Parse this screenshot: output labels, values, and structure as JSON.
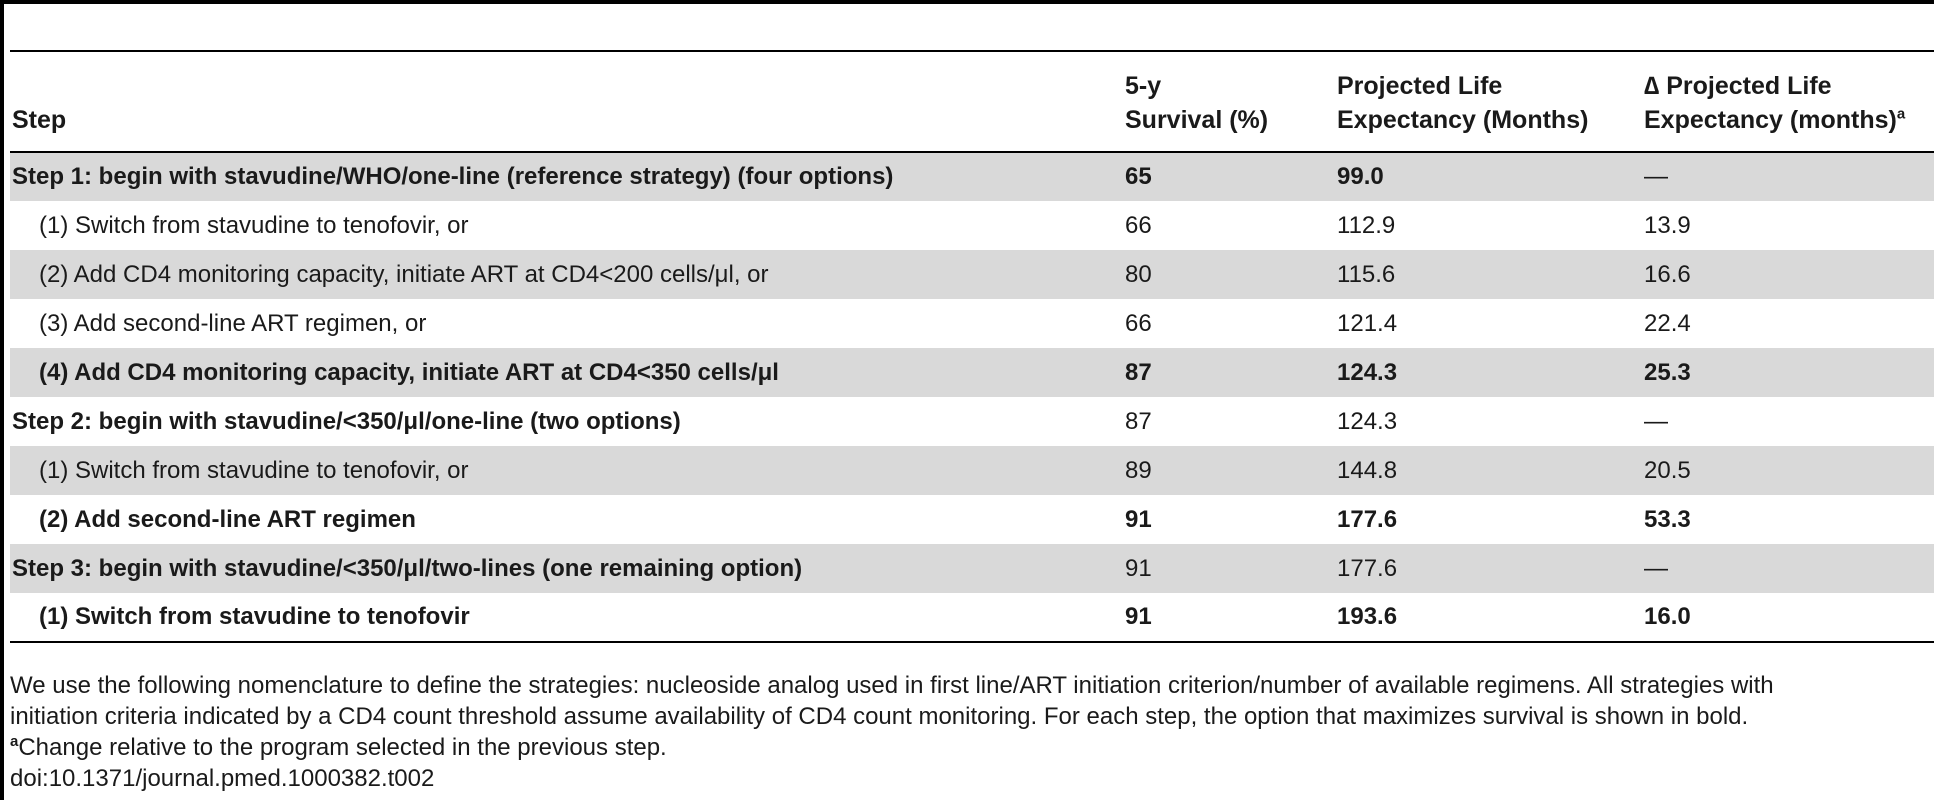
{
  "table": {
    "headers": {
      "step": "Step",
      "survival": [
        "5-y",
        "Survival (%)"
      ],
      "ple": [
        "Projected Life",
        "Expectancy (Months)"
      ],
      "delta": [
        "∆ Projected Life",
        "Expectancy (months)"
      ],
      "delta_sup": "a"
    },
    "rows": [
      {
        "label": "Step 1: begin with stavudine/WHO/one-line (reference strategy) (four options)",
        "survival": "65",
        "ple": "99.0",
        "delta": "—"
      },
      {
        "label": "(1) Switch from stavudine to tenofovir, or",
        "survival": "66",
        "ple": "112.9",
        "delta": "13.9"
      },
      {
        "label": "(2) Add CD4 monitoring capacity, initiate ART at CD4<200 cells/μl, or",
        "survival": "80",
        "ple": "115.6",
        "delta": "16.6"
      },
      {
        "label": "(3) Add second-line ART regimen, or",
        "survival": "66",
        "ple": "121.4",
        "delta": "22.4"
      },
      {
        "label": "(4) Add CD4 monitoring capacity, initiate ART at CD4<350 cells/μl",
        "survival": "87",
        "ple": "124.3",
        "delta": "25.3"
      },
      {
        "label": "Step 2: begin with stavudine/<350/μl/one-line (two options)",
        "survival": "87",
        "ple": "124.3",
        "delta": "—"
      },
      {
        "label": "(1) Switch from stavudine to tenofovir, or",
        "survival": "89",
        "ple": "144.8",
        "delta": "20.5"
      },
      {
        "label": "(2) Add second-line ART regimen",
        "survival": "91",
        "ple": "177.6",
        "delta": "53.3"
      },
      {
        "label": "Step 3: begin with stavudine/<350/μl/two-lines (one remaining option)",
        "survival": "91",
        "ple": "177.6",
        "delta": "—"
      },
      {
        "label": "(1) Switch from stavudine to tenofovir",
        "survival": "91",
        "ple": "193.6",
        "delta": "16.0"
      }
    ]
  },
  "footnote": {
    "line1": "We use the following nomenclature to define the strategies: nucleoside analog used in first line/ART initiation criterion/number of available regimens. All strategies with",
    "line2": "initiation criteria indicated by a CD4 count threshold assume availability of CD4 count monitoring. For each step, the option that maximizes survival is shown in bold.",
    "note_marker": "a",
    "note_text": "Change relative to the program selected in the previous step.",
    "doi": "doi:10.1371/journal.pmed.1000382.t002"
  }
}
